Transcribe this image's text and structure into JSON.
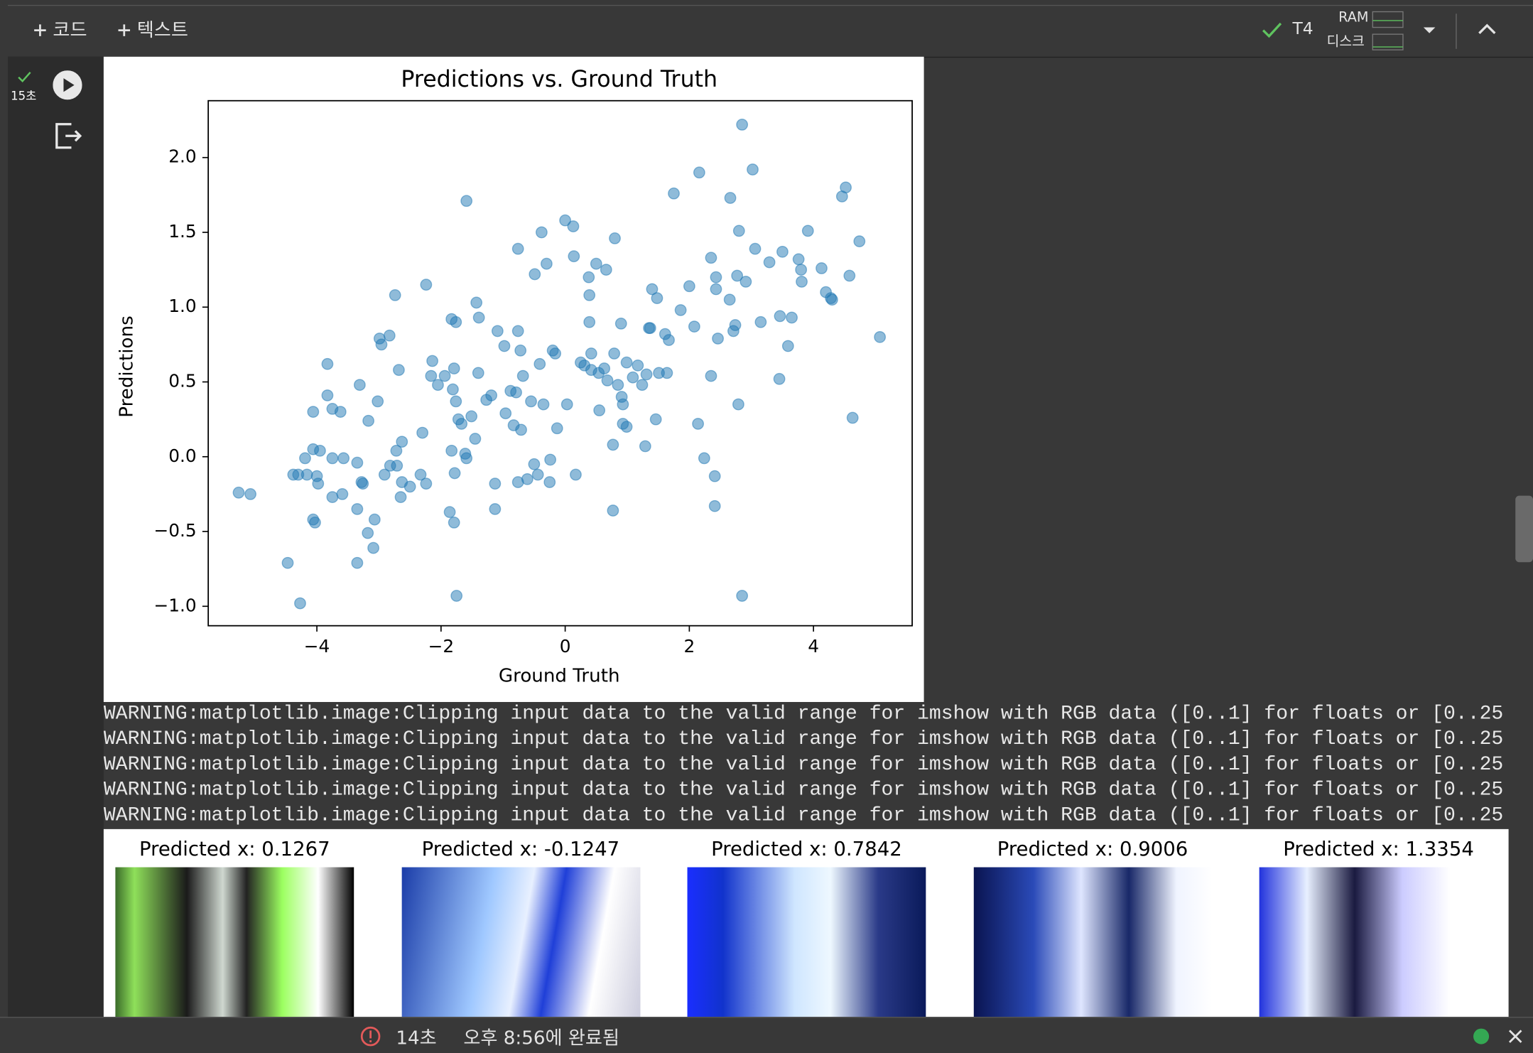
{
  "toolbar": {
    "add_code": "코드",
    "add_text": "텍스트",
    "runtime": "T4",
    "ram": "RAM",
    "disk": "디스크"
  },
  "cell": {
    "exec_time": "15초"
  },
  "chart_data": {
    "type": "scatter",
    "title": "Predictions vs. Ground Truth",
    "x_label": "Ground Truth",
    "y_label": "Predictions",
    "color": "#1f77b4",
    "x": [
      -5.26,
      -5.07,
      -4.47,
      -4.27,
      -4.38,
      -4.3,
      -4.19,
      -4.16,
      -4.06,
      -4.06,
      -3.95,
      -4.06,
      -4.03,
      -4.0,
      -3.98,
      -3.83,
      -3.83,
      -3.75,
      -3.75,
      -3.75,
      -3.62,
      -3.57,
      -3.59,
      -3.35,
      -3.35,
      -3.35,
      -3.31,
      -3.28,
      -3.26,
      -3.17,
      -3.18,
      -3.09,
      -3.07,
      -3.02,
      -2.99,
      -2.96,
      -2.91,
      -2.83,
      -2.82,
      -2.74,
      -2.72,
      -2.71,
      -2.68,
      -2.65,
      -2.63,
      -2.63,
      -2.5,
      -2.33,
      -2.3,
      -2.24,
      -2.24,
      -2.16,
      -2.14,
      -2.05,
      -1.94,
      -1.86,
      -1.83,
      -1.83,
      -1.81,
      -1.79,
      -1.79,
      -1.78,
      -1.76,
      -1.76,
      -1.75,
      -1.72,
      -1.67,
      -1.59,
      -1.61,
      -1.59,
      -1.51,
      -1.43,
      -1.4,
      -1.39,
      -1.45,
      -1.27,
      -1.19,
      -1.13,
      -1.13,
      -1.09,
      -0.98,
      -0.96,
      -0.88,
      -0.83,
      -0.79,
      -0.76,
      -0.76,
      -0.76,
      -0.72,
      -0.71,
      -0.68,
      -0.61,
      -0.55,
      -0.5,
      -0.49,
      -0.44,
      -0.41,
      -0.38,
      -0.35,
      -0.3,
      -0.24,
      -0.25,
      -0.2,
      -0.16,
      -0.13,
      0.0,
      0.03,
      0.13,
      0.14,
      0.17,
      0.25,
      0.31,
      0.38,
      0.39,
      0.39,
      0.42,
      0.42,
      0.5,
      0.55,
      0.54,
      0.63,
      0.66,
      0.68,
      0.77,
      0.77,
      0.79,
      0.8,
      0.85,
      0.9,
      0.91,
      0.93,
      0.93,
      0.99,
      0.99,
      1.09,
      1.17,
      1.24,
      1.29,
      1.31,
      1.35,
      1.37,
      1.4,
      1.46,
      1.48,
      1.51,
      1.61,
      1.64,
      1.67,
      1.75,
      1.86,
      2.0,
      2.08,
      2.14,
      2.16,
      2.24,
      2.35,
      2.35,
      2.41,
      2.41,
      2.43,
      2.43,
      2.46,
      2.65,
      2.66,
      2.71,
      2.74,
      2.77,
      2.79,
      2.8,
      2.85,
      2.85,
      2.91,
      3.02,
      3.06,
      3.15,
      3.29,
      3.45,
      3.46,
      3.5,
      3.59,
      3.65,
      3.76,
      3.8,
      3.81,
      3.91,
      4.13,
      4.2,
      4.28,
      4.3,
      4.46,
      4.52,
      4.58,
      4.63,
      4.74,
      5.07
    ],
    "values": [
      -0.24,
      -0.25,
      -0.71,
      -0.98,
      -0.12,
      -0.12,
      -0.01,
      -0.12,
      0.3,
      0.05,
      0.04,
      -0.42,
      -0.44,
      -0.13,
      -0.18,
      0.62,
      0.41,
      0.32,
      -0.01,
      -0.27,
      0.3,
      -0.01,
      -0.25,
      -0.04,
      -0.35,
      -0.71,
      0.48,
      -0.17,
      -0.18,
      0.24,
      -0.51,
      -0.61,
      -0.42,
      0.37,
      0.79,
      0.75,
      -0.12,
      0.81,
      -0.06,
      1.08,
      0.04,
      -0.06,
      0.58,
      -0.27,
      0.1,
      -0.17,
      -0.2,
      -0.12,
      0.16,
      1.15,
      -0.18,
      0.54,
      0.64,
      0.48,
      0.54,
      -0.37,
      0.92,
      0.04,
      0.45,
      0.59,
      -0.44,
      -0.11,
      0.9,
      0.37,
      -0.93,
      0.25,
      0.22,
      1.71,
      0.02,
      -0.01,
      0.27,
      1.03,
      0.56,
      0.93,
      0.12,
      0.38,
      0.41,
      -0.18,
      -0.35,
      0.84,
      0.74,
      0.29,
      0.44,
      0.21,
      0.43,
      -0.17,
      0.84,
      1.39,
      0.71,
      0.18,
      0.54,
      -0.15,
      0.37,
      -0.05,
      1.22,
      -0.12,
      0.62,
      1.5,
      0.35,
      1.29,
      -0.02,
      -0.17,
      0.71,
      0.69,
      0.19,
      1.58,
      0.35,
      1.54,
      1.34,
      -0.12,
      0.63,
      0.61,
      1.2,
      1.08,
      0.9,
      0.69,
      0.58,
      1.29,
      0.31,
      0.56,
      0.59,
      1.25,
      0.51,
      -0.36,
      0.08,
      0.69,
      1.46,
      0.48,
      0.89,
      0.4,
      0.22,
      0.35,
      0.63,
      0.2,
      0.53,
      0.61,
      0.48,
      0.07,
      0.55,
      0.86,
      0.86,
      1.12,
      0.25,
      1.06,
      0.56,
      0.82,
      0.56,
      0.78,
      1.76,
      0.98,
      1.14,
      0.87,
      0.22,
      1.9,
      -0.01,
      1.33,
      0.54,
      -0.13,
      -0.33,
      1.2,
      1.12,
      0.79,
      1.05,
      1.73,
      0.84,
      0.88,
      1.21,
      0.35,
      1.51,
      2.22,
      -0.93,
      1.17,
      1.92,
      1.39,
      0.9,
      1.3,
      0.52,
      0.94,
      1.37,
      0.74,
      0.93,
      1.32,
      1.25,
      1.17,
      1.51,
      1.26,
      1.1,
      1.06,
      1.05,
      1.74,
      1.8,
      1.21,
      0.26,
      1.44,
      0.8
    ],
    "xlim": [
      -5.75,
      5.59
    ],
    "ylim": [
      -1.13,
      2.38
    ],
    "xticks": [
      {
        "value": -4,
        "label": "−4"
      },
      {
        "value": -2,
        "label": "−2"
      },
      0,
      2,
      4
    ],
    "yticks": [
      {
        "value": -1,
        "label": "−1.0"
      },
      {
        "value": -0.5,
        "label": "−0.5"
      },
      {
        "value": 0,
        "label": "0.0"
      },
      0.5,
      {
        "value": 1,
        "label": "1.0"
      },
      1.5,
      {
        "value": 2,
        "label": "2.0"
      }
    ]
  },
  "warnings": [
    "WARNING:matplotlib.image:Clipping input data to the valid range for imshow with RGB data ([0..1] for floats or [0..25",
    "WARNING:matplotlib.image:Clipping input data to the valid range for imshow with RGB data ([0..1] for floats or [0..25",
    "WARNING:matplotlib.image:Clipping input data to the valid range for imshow with RGB data ([0..1] for floats or [0..25",
    "WARNING:matplotlib.image:Clipping input data to the valid range for imshow with RGB data ([0..1] for floats or [0..25",
    "WARNING:matplotlib.image:Clipping input data to the valid range for imshow with RGB data ([0..1] for floats or [0..25"
  ],
  "images": [
    "Predicted x: 0.1267",
    "Predicted x: -0.1247",
    "Predicted x: 0.7842",
    "Predicted x: 0.9006",
    "Predicted x: 1.3354"
  ],
  "status": {
    "elapsed": "14초",
    "completed": "오후 8:56에 완료됨"
  }
}
